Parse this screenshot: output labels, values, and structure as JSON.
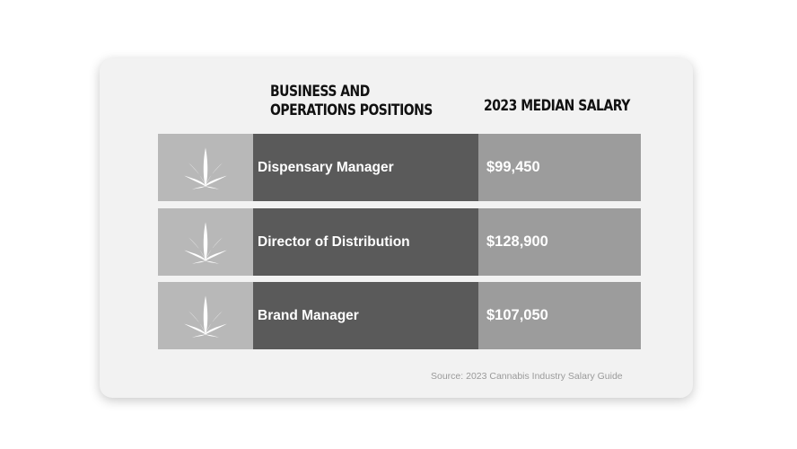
{
  "chart_data": {
    "type": "table",
    "columns": [
      "Business and Operations Positions",
      "2023 Median Salary"
    ],
    "rows": [
      {
        "position": "Dispensary Manager",
        "salary": "$99,450",
        "value": 99450
      },
      {
        "position": "Director of Distribution",
        "salary": "$128,900",
        "value": 128900
      },
      {
        "position": "Brand Manager",
        "salary": "$107,050",
        "value": 107050
      }
    ],
    "source": "Source: 2023 Cannabis Industry Salary Guide"
  },
  "colors": {
    "card_background": "#f2f2f2",
    "icon_cell": "#b8b8b8",
    "position_cell": "#5a5a5a",
    "salary_cell": "#9c9c9c",
    "text_light": "#ffffff",
    "header_text": "#111111",
    "source_text": "#9a9a9a"
  },
  "icons": [
    "cannabis-leaf-icon"
  ]
}
